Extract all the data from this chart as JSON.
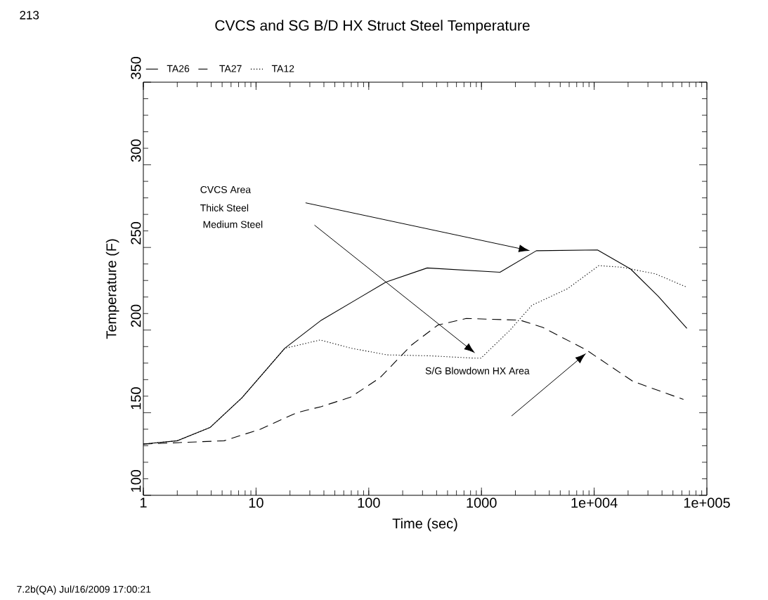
{
  "chart_data": {
    "type": "line",
    "title": "CVCS and SG B/D HX Struct Steel Temperature",
    "xlabel": "Time (sec)",
    "ylabel": "Temperature (F)",
    "log": "x",
    "xlim": [
      1,
      100000
    ],
    "ylim": [
      100,
      350
    ],
    "xticks": [
      1,
      10,
      100,
      1000,
      {
        "value": 10000,
        "label": "1e+004"
      },
      {
        "value": 100000,
        "label": "1e+005"
      }
    ],
    "yticks": [
      100,
      150,
      200,
      250,
      300,
      350
    ],
    "grid": false,
    "legend": "top left",
    "marker": "none",
    "series": [
      {
        "name": "TA26",
        "color": "#000000",
        "line_style": "solid",
        "x": [
          1,
          2,
          3.9,
          7.5,
          18,
          38,
          80,
          142,
          330,
          1460,
          3070,
          10700,
          21000,
          37000,
          66500
        ],
        "values": [
          131,
          133,
          141,
          159,
          189,
          206,
          219,
          229,
          237.6,
          235,
          248,
          248.5,
          237,
          220.5,
          201
        ]
      },
      {
        "name": "TA27",
        "color": "#000000",
        "line_style": "dashed",
        "x": [
          1,
          5.2,
          10.9,
          23,
          38,
          69,
          125,
          240,
          410,
          735,
          2200,
          3500,
          8500,
          22000,
          62000
        ],
        "values": [
          131,
          133,
          140,
          150,
          153.7,
          159.4,
          171,
          191,
          203,
          207,
          206,
          201.6,
          188,
          169,
          158
        ]
      },
      {
        "name": "TA12",
        "color": "#000000",
        "line_style": "dotted",
        "x": [
          1,
          2,
          3.9,
          7.5,
          18,
          21,
          37,
          70,
          145,
          354,
          860,
          990,
          1770,
          2800,
          5800,
          11000,
          17700,
          35000,
          66000
        ],
        "values": [
          131,
          133,
          141,
          159,
          189,
          190,
          194,
          189,
          185,
          184.4,
          183,
          183,
          199.6,
          215,
          225,
          239,
          238,
          234,
          226
        ]
      }
    ],
    "annotations": [
      "213",
      "CVCS Area",
      "Thick Steel",
      "Medium Steel",
      "S/G Blowdown HX Area",
      "7.2b(QA) Jul/16/2009 17:00:21"
    ]
  }
}
